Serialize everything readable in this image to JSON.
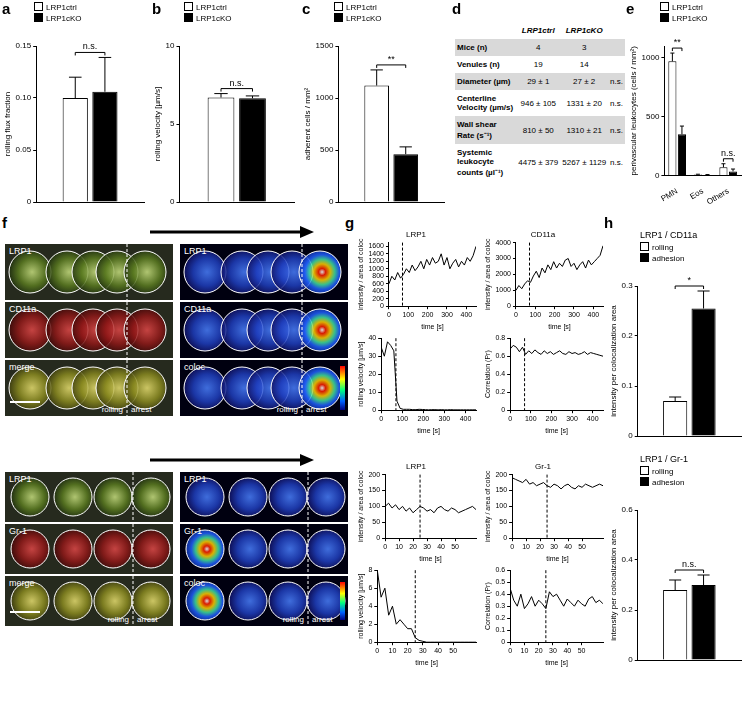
{
  "chart_data": [
    {
      "panel": "a",
      "type": "bar",
      "categories": [
        null
      ],
      "series": [
        {
          "name": "LRP1ctrl",
          "color": "#ffffff",
          "values": [
            0.1
          ],
          "errors": [
            0.02
          ]
        },
        {
          "name": "LRP1cKO",
          "color": "#000000",
          "values": [
            0.106
          ],
          "errors": [
            0.033
          ]
        }
      ],
      "ylabel": "rolling flux fraction",
      "ylim": [
        0,
        0.15
      ],
      "yticks": [
        0,
        0.05,
        {
          "value": 0.1,
          "label": "0.10"
        },
        0.15
      ],
      "legend": "top-left",
      "tick_labels": "y",
      "annotations": [
        {
          "text": "n.s."
        }
      ]
    },
    {
      "panel": "b",
      "type": "bar",
      "categories": [
        null
      ],
      "series": [
        {
          "name": "LRP1ctrl",
          "color": "#ffffff",
          "values": [
            6.7
          ],
          "errors": [
            0.25
          ]
        },
        {
          "name": "LRP1cKO",
          "color": "#000000",
          "values": [
            6.65
          ],
          "errors": [
            0.15
          ]
        }
      ],
      "ylabel": "rolling velocity [µm/s]",
      "ylim": [
        0,
        10
      ],
      "yticks": [
        0,
        5,
        10
      ],
      "legend": "top-left",
      "tick_labels": "y",
      "annotations": [
        {
          "text": "n.s."
        }
      ]
    },
    {
      "panel": "c",
      "type": "bar",
      "categories": [
        null
      ],
      "series": [
        {
          "name": "LRP1ctrl",
          "color": "#ffffff",
          "values": [
            1120
          ],
          "errors": [
            150
          ]
        },
        {
          "name": "LRP1cKO",
          "color": "#000000",
          "values": [
            460
          ],
          "errors": [
            70
          ]
        }
      ],
      "ylabel": "adherent cells / mm²",
      "ylim": [
        0,
        1500
      ],
      "yticks": [
        0,
        500,
        1000,
        1500
      ],
      "legend": "top-left",
      "tick_labels": "y",
      "annotations": [
        {
          "text": "**"
        }
      ]
    },
    {
      "panel": "e",
      "type": "bar",
      "categories": [
        "PMN",
        "Eos",
        "Others"
      ],
      "series": [
        {
          "name": "LRP1ctrl",
          "color": "#ffffff",
          "values": [
            970,
            8,
            70
          ],
          "errors": [
            70,
            3,
            30
          ]
        },
        {
          "name": "LRP1cKO",
          "color": "#000000",
          "values": [
            350,
            5,
            35
          ],
          "errors": [
            70,
            3,
            20
          ]
        }
      ],
      "ylabel": "perivascular leukocytes (cells / mm²)",
      "ylim": [
        0,
        1100
      ],
      "yticks": [
        0,
        500,
        1000
      ],
      "legend": "top-left",
      "annotations": [
        {
          "text": "**",
          "category": "PMN"
        },
        {
          "text": "n.s.",
          "category": "Others"
        }
      ]
    },
    {
      "panel": "g",
      "type": "line",
      "title": "LRP1",
      "color": "#000000",
      "x": [
        0,
        15,
        30,
        45,
        60,
        75,
        90,
        105,
        120,
        135,
        150,
        165,
        180,
        195,
        210,
        225,
        240,
        255,
        270,
        285,
        300,
        315,
        330,
        345,
        360,
        375,
        390,
        405,
        420,
        435,
        450
      ],
      "values": [
        600,
        800,
        700,
        900,
        750,
        850,
        1000,
        900,
        1100,
        950,
        1050,
        1200,
        1000,
        1250,
        1100,
        1300,
        1150,
        1200,
        1400,
        1100,
        1300,
        1000,
        1150,
        1250,
        1050,
        1200,
        1100,
        1300,
        1200,
        1350,
        1600
      ],
      "xlabel": "time [s]",
      "ylabel": "intensity / area of coloc",
      "xlim": [
        0,
        450
      ],
      "xticks": [
        0,
        100,
        200,
        300,
        400
      ],
      "ylim": [
        0,
        1700
      ],
      "yticks": [
        0,
        200,
        400,
        600,
        800,
        1000,
        1200,
        1400,
        1600
      ],
      "vline": 70
    },
    {
      "type": "line",
      "title": "CD11a",
      "color": "#000000",
      "x": [
        0,
        15,
        30,
        45,
        60,
        75,
        90,
        105,
        120,
        135,
        150,
        165,
        180,
        195,
        210,
        225,
        240,
        255,
        270,
        285,
        300,
        315,
        330,
        345,
        360,
        375,
        390,
        405,
        420,
        435,
        450
      ],
      "values": [
        1000,
        1300,
        1100,
        1400,
        1600,
        1500,
        1900,
        2200,
        1800,
        2400,
        2100,
        2600,
        2300,
        2800,
        2400,
        2700,
        2500,
        2900,
        3000,
        2500,
        2700,
        2300,
        2600,
        2800,
        2400,
        2900,
        2600,
        2800,
        3000,
        3200,
        3800
      ],
      "xlabel": "time [s]",
      "ylabel": "intensity / area of coloc",
      "xlim": [
        0,
        450
      ],
      "xticks": [
        0,
        100,
        200,
        300,
        400
      ],
      "ylim": [
        0,
        4000
      ],
      "yticks": [
        0,
        1000,
        2000,
        3000,
        4000
      ],
      "vline": 70
    },
    {
      "type": "line",
      "color": "#000000",
      "x": [
        0,
        15,
        30,
        45,
        60,
        75,
        90,
        105,
        120,
        135,
        150,
        165,
        180,
        195,
        210,
        225,
        240,
        255,
        270,
        285,
        300,
        315,
        330,
        345,
        360,
        375,
        390,
        405,
        420,
        435,
        450
      ],
      "values": [
        35,
        30,
        38,
        36,
        33,
        5,
        1,
        0.5,
        0.5,
        0.5,
        0.3,
        0.3,
        0.5,
        0.4,
        0.3,
        0.2,
        0.3,
        0.3,
        0.2,
        0.3,
        0.2,
        0.2,
        0.3,
        0.2,
        0.2,
        0.2,
        0.2,
        0.2,
        0.2,
        0.2,
        0.2
      ],
      "xlabel": "time [s]",
      "ylabel": "rolling velocity [µm/s]",
      "xlim": [
        0,
        450
      ],
      "xticks": [
        0,
        100,
        200,
        300,
        400
      ],
      "ylim": [
        0,
        40
      ],
      "yticks": [
        0,
        10,
        20,
        30,
        40
      ],
      "vline": 70
    },
    {
      "type": "line",
      "color": "#000000",
      "x": [
        0,
        15,
        30,
        45,
        60,
        75,
        90,
        105,
        120,
        135,
        150,
        165,
        180,
        195,
        210,
        225,
        240,
        255,
        270,
        285,
        300,
        315,
        330,
        345,
        360,
        375,
        390,
        405,
        420,
        435,
        450
      ],
      "values": [
        0.68,
        0.72,
        0.7,
        0.65,
        0.7,
        0.62,
        0.66,
        0.63,
        0.67,
        0.64,
        0.62,
        0.66,
        0.63,
        0.65,
        0.62,
        0.64,
        0.66,
        0.63,
        0.62,
        0.65,
        0.63,
        0.64,
        0.62,
        0.63,
        0.65,
        0.62,
        0.64,
        0.63,
        0.62,
        0.61,
        0.6
      ],
      "xlabel": "time [s]",
      "ylabel": "Correlation (Pr)",
      "xlim": [
        0,
        450
      ],
      "xticks": [
        0,
        100,
        200,
        300,
        400
      ],
      "ylim": [
        0,
        0.8
      ],
      "yticks": [
        0,
        0.2,
        0.4,
        0.6,
        0.8
      ],
      "vline": 70
    },
    {
      "type": "line",
      "title": "LRP1",
      "color": "#000000",
      "x": [
        0,
        2.5,
        5,
        7.5,
        10,
        12.5,
        15,
        17.5,
        20,
        22.5,
        25,
        27.5,
        30,
        32.5,
        35,
        37.5,
        40,
        42.5,
        45,
        47.5,
        50,
        52.5,
        55,
        57.5,
        60,
        62.5,
        65
      ],
      "values": [
        100,
        110,
        95,
        105,
        90,
        100,
        85,
        95,
        80,
        90,
        100,
        95,
        85,
        90,
        80,
        95,
        100,
        90,
        85,
        95,
        90,
        80,
        85,
        90,
        95,
        100,
        90
      ],
      "xlabel": "time [s]",
      "ylabel": "intensity / area of coloc",
      "xlim": [
        0,
        65
      ],
      "xticks": [
        0,
        10,
        20,
        30,
        40,
        50
      ],
      "ylim": [
        0,
        200
      ],
      "yticks": [
        0,
        50,
        100,
        150,
        200
      ],
      "vline": 25
    },
    {
      "type": "line",
      "title": "Gr-1",
      "color": "#000000",
      "x": [
        0,
        2.5,
        5,
        7.5,
        10,
        12.5,
        15,
        17.5,
        20,
        22.5,
        25,
        27.5,
        30,
        32.5,
        35,
        37.5,
        40,
        42.5,
        45,
        47.5,
        50,
        52.5,
        55,
        57.5,
        60,
        62.5,
        65
      ],
      "values": [
        190,
        185,
        180,
        175,
        185,
        170,
        175,
        165,
        170,
        175,
        165,
        160,
        170,
        165,
        155,
        165,
        170,
        160,
        155,
        165,
        160,
        170,
        165,
        160,
        165,
        170,
        165
      ],
      "xlabel": "time [s]",
      "ylabel": "intensity / area of coloc",
      "xlim": [
        0,
        65
      ],
      "xticks": [
        0,
        10,
        20,
        30,
        40,
        50
      ],
      "ylim": [
        0,
        200
      ],
      "yticks": [
        0,
        50,
        100,
        150,
        200
      ],
      "vline": 25
    },
    {
      "type": "line",
      "color": "#000000",
      "x": [
        0,
        2.5,
        5,
        7.5,
        10,
        12.5,
        15,
        17.5,
        20,
        22.5,
        25,
        27.5,
        30,
        32.5,
        35,
        37.5,
        40,
        42.5,
        45,
        47.5,
        50,
        52.5,
        55,
        57.5,
        60,
        62.5,
        65
      ],
      "values": [
        8,
        5,
        6,
        3,
        4,
        2,
        2.5,
        2,
        1.5,
        1.5,
        0.5,
        0.2,
        0.1,
        0,
        0,
        0,
        0,
        0,
        0,
        0,
        0,
        0,
        0,
        0,
        0,
        0,
        0
      ],
      "xlabel": "time [s]",
      "ylabel": "rolling velocity [µm/s]",
      "xlim": [
        0,
        65
      ],
      "xticks": [
        0,
        10,
        20,
        30,
        40,
        50
      ],
      "ylim": [
        0,
        8
      ],
      "yticks": [
        0,
        2,
        4,
        6,
        8
      ],
      "vline": 25
    },
    {
      "type": "line",
      "color": "#000000",
      "x": [
        0,
        2.5,
        5,
        7.5,
        10,
        12.5,
        15,
        17.5,
        20,
        22.5,
        25,
        27.5,
        30,
        32.5,
        35,
        37.5,
        40,
        42.5,
        45,
        47.5,
        50,
        52.5,
        55,
        57.5,
        60,
        62.5,
        65
      ],
      "values": [
        0.45,
        0.35,
        0.3,
        0.4,
        0.28,
        0.32,
        0.38,
        0.3,
        0.35,
        0.32,
        0.28,
        0.42,
        0.38,
        0.4,
        0.35,
        0.3,
        0.36,
        0.33,
        0.3,
        0.35,
        0.32,
        0.3,
        0.36,
        0.38,
        0.33,
        0.35,
        0.32
      ],
      "xlabel": "time [s]",
      "ylabel": "Correlation (Pr)",
      "xlim": [
        0,
        65
      ],
      "xticks": [
        0,
        10,
        20,
        30,
        40,
        50
      ],
      "ylim": [
        0,
        0.6
      ],
      "yticks": [
        0,
        0.1,
        0.2,
        0.3,
        0.4,
        0.5,
        0.6
      ],
      "vline": 25
    },
    {
      "panel": "h",
      "type": "bar",
      "title": "LRP1 / CD11a",
      "categories": [
        null
      ],
      "series": [
        {
          "name": "rolling",
          "color": "#ffffff",
          "values": [
            0.07
          ],
          "errors": [
            0.008
          ]
        },
        {
          "name": "adhesion",
          "color": "#000000",
          "values": [
            0.255
          ],
          "errors": [
            0.035
          ]
        }
      ],
      "ylabel": "intensity per colocalization area",
      "ylim": [
        0,
        0.3
      ],
      "yticks": [
        0,
        0.1,
        0.2,
        0.3
      ],
      "legend": "top-left",
      "tick_labels": "y",
      "annotations": [
        {
          "text": "*"
        }
      ]
    },
    {
      "type": "bar",
      "title": "LRP1 / Gr-1",
      "categories": [
        null
      ],
      "series": [
        {
          "name": "rolling",
          "color": "#ffffff",
          "values": [
            0.28
          ],
          "errors": [
            0.04
          ]
        },
        {
          "name": "adhesion",
          "color": "#000000",
          "values": [
            0.3
          ],
          "errors": [
            0.04
          ]
        }
      ],
      "ylabel": "intensity per colocalization area",
      "ylim": [
        0,
        0.6
      ],
      "yticks": [
        0,
        0.2,
        0.4,
        0.6
      ],
      "legend": "top-left",
      "tick_labels": "y",
      "annotations": [
        {
          "text": "n.s."
        }
      ]
    }
  ],
  "table": {
    "panel": "d",
    "header": [
      "LRP1ctrl",
      "LRP1cKO"
    ],
    "rows": [
      {
        "label": "Mice (n)",
        "cells": [
          "4",
          "3"
        ]
      },
      {
        "label": "Venules (n)",
        "cells": [
          "19",
          "14"
        ]
      },
      {
        "label": "Diameter (µm)",
        "cells": [
          "29 ± 1",
          "27 ± 2",
          "n.s."
        ]
      },
      {
        "label": "Centerline Velocity (µm/s)",
        "cells": [
          "946 ± 105",
          "1331 ± 20",
          "n.s."
        ]
      },
      {
        "label": "Wall shear Rate (s⁻¹)",
        "cells": [
          "810 ± 50",
          "1310 ± 21",
          "n.s."
        ]
      },
      {
        "label": "Systemic leukocyte counts (µl⁻¹)",
        "cells": [
          "4475 ± 379",
          "5267 ± 1129",
          "n.s."
        ]
      }
    ]
  },
  "images": {
    "panel": "f",
    "groups": [
      {
        "left": [
          "LRP1",
          "CD11a",
          "merge"
        ],
        "right": [
          "LRP1",
          "CD11a",
          "coloc"
        ],
        "phases": [
          "rolling",
          "arrest"
        ]
      },
      {
        "left": [
          "LRP1",
          "Gr-1",
          "merge"
        ],
        "right": [
          "LRP1",
          "Gr-1",
          "coloc"
        ],
        "phases": [
          "rolling",
          "arrest"
        ]
      }
    ]
  }
}
